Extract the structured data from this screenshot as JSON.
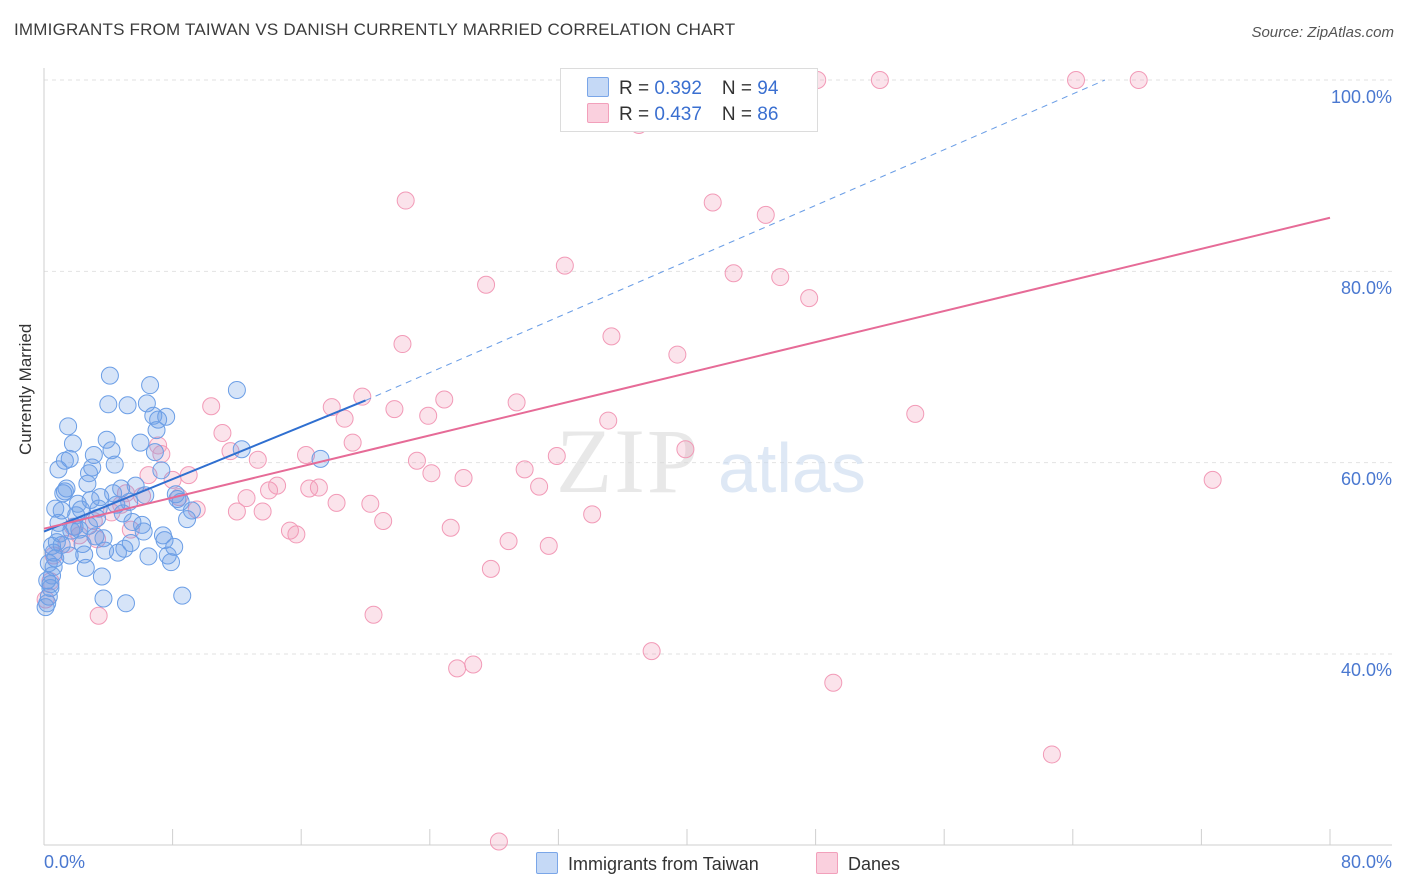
{
  "title": "IMMIGRANTS FROM TAIWAN VS DANISH CURRENTLY MARRIED CORRELATION CHART",
  "source": "Source: ZipAtlas.com",
  "watermark": {
    "zip": "ZIP",
    "atlas": "atlas"
  },
  "legend": {
    "series": [
      {
        "label_r": "R = ",
        "r": "0.392",
        "label_n": "N = ",
        "n": "94",
        "color": "#7aa6e8"
      },
      {
        "label_r": "R = ",
        "r": "0.437",
        "label_n": "N = ",
        "n": "86",
        "color": "#f2a0bb"
      }
    ]
  },
  "bottom_legend": {
    "taiwan": "Immigrants from Taiwan",
    "danes": "Danes"
  },
  "chart_data": {
    "type": "scatter",
    "title": "IMMIGRANTS FROM TAIWAN VS DANISH CURRENTLY MARRIED CORRELATION CHART",
    "xlabel": "",
    "ylabel": "Currently Married",
    "xlim": [
      0,
      80
    ],
    "ylim": [
      20,
      102
    ],
    "x_tick_labels": [
      "0.0%",
      "80.0%"
    ],
    "y_ticks": [
      40,
      60,
      80,
      100
    ],
    "y_tick_labels": [
      "40.0%",
      "60.0%",
      "80.0%",
      "100.0%"
    ],
    "grid": true,
    "series": [
      {
        "name": "Immigrants from Taiwan",
        "color": "#6b9ee6",
        "line_color": "#2f6fd0",
        "trend": {
          "x": [
            0,
            20
          ],
          "y": [
            52.8,
            66.5
          ]
        },
        "trend_ext": {
          "x": [
            20,
            66
          ],
          "y": [
            66.5,
            100.0
          ]
        },
        "points": [
          [
            0.1,
            44.9
          ],
          [
            0.2,
            45.3
          ],
          [
            0.3,
            46.0
          ],
          [
            0.4,
            47.3
          ],
          [
            0.5,
            48.2
          ],
          [
            0.6,
            49.1
          ],
          [
            0.7,
            50.0
          ],
          [
            0.5,
            51.3
          ],
          [
            0.8,
            51.7
          ],
          [
            1.0,
            52.6
          ],
          [
            0.9,
            53.7
          ],
          [
            1.1,
            55.0
          ],
          [
            1.2,
            56.8
          ],
          [
            1.4,
            57.3
          ],
          [
            1.3,
            60.2
          ],
          [
            1.6,
            60.4
          ],
          [
            1.8,
            62.0
          ],
          [
            1.5,
            63.8
          ],
          [
            2.0,
            54.5
          ],
          [
            2.2,
            53.0
          ],
          [
            2.4,
            51.5
          ],
          [
            2.5,
            50.4
          ],
          [
            2.6,
            49.0
          ],
          [
            2.7,
            57.8
          ],
          [
            2.8,
            58.9
          ],
          [
            3.0,
            59.5
          ],
          [
            3.1,
            60.8
          ],
          [
            3.2,
            52.3
          ],
          [
            3.3,
            54.2
          ],
          [
            3.5,
            56.4
          ],
          [
            3.6,
            48.1
          ],
          [
            3.7,
            45.8
          ],
          [
            3.8,
            50.8
          ],
          [
            3.9,
            62.4
          ],
          [
            4.0,
            66.1
          ],
          [
            4.1,
            69.1
          ],
          [
            4.2,
            61.3
          ],
          [
            4.4,
            59.8
          ],
          [
            4.5,
            55.6
          ],
          [
            4.6,
            50.6
          ],
          [
            4.8,
            57.3
          ],
          [
            5.0,
            51.0
          ],
          [
            5.1,
            45.3
          ],
          [
            5.3,
            55.9
          ],
          [
            5.5,
            53.8
          ],
          [
            5.7,
            57.6
          ],
          [
            6.0,
            62.1
          ],
          [
            5.2,
            66.0
          ],
          [
            6.2,
            52.8
          ],
          [
            6.5,
            50.2
          ],
          [
            6.3,
            56.6
          ],
          [
            6.8,
            64.9
          ],
          [
            7.0,
            63.4
          ],
          [
            7.3,
            59.2
          ],
          [
            7.5,
            51.9
          ],
          [
            7.7,
            50.3
          ],
          [
            7.9,
            49.6
          ],
          [
            8.1,
            51.2
          ],
          [
            8.3,
            56.2
          ],
          [
            8.5,
            55.9
          ],
          [
            8.6,
            46.1
          ],
          [
            8.9,
            54.1
          ],
          [
            9.2,
            55.0
          ],
          [
            6.6,
            68.1
          ],
          [
            6.4,
            66.2
          ],
          [
            7.6,
            64.8
          ],
          [
            7.1,
            64.5
          ],
          [
            12.0,
            67.6
          ],
          [
            12.3,
            61.4
          ],
          [
            17.2,
            60.4
          ],
          [
            0.3,
            49.5
          ],
          [
            0.6,
            50.6
          ],
          [
            1.1,
            51.4
          ],
          [
            1.9,
            53.3
          ],
          [
            2.3,
            55.1
          ],
          [
            2.9,
            56.1
          ],
          [
            3.4,
            55.2
          ],
          [
            4.3,
            56.8
          ],
          [
            0.2,
            47.7
          ],
          [
            0.4,
            46.9
          ],
          [
            1.7,
            52.9
          ],
          [
            2.1,
            55.7
          ],
          [
            0.9,
            59.3
          ],
          [
            1.3,
            57.0
          ],
          [
            0.7,
            55.2
          ],
          [
            1.6,
            50.3
          ],
          [
            2.8,
            53.4
          ],
          [
            3.7,
            52.1
          ],
          [
            4.9,
            54.7
          ],
          [
            5.4,
            51.6
          ],
          [
            6.9,
            61.1
          ],
          [
            8.2,
            56.7
          ],
          [
            7.4,
            52.4
          ],
          [
            6.1,
            53.5
          ]
        ]
      },
      {
        "name": "Danes",
        "color": "#f29ab7",
        "line_color": "#e66b97",
        "trend": {
          "x": [
            0,
            80
          ],
          "y": [
            53.1,
            85.6
          ]
        },
        "points": [
          [
            0.1,
            45.7
          ],
          [
            0.4,
            47.6
          ],
          [
            0.6,
            50.3
          ],
          [
            1.4,
            51.5
          ],
          [
            1.8,
            53.3
          ],
          [
            2.2,
            52.4
          ],
          [
            3.1,
            53.9
          ],
          [
            3.3,
            52.0
          ],
          [
            4.2,
            54.8
          ],
          [
            4.8,
            55.6
          ],
          [
            5.1,
            56.8
          ],
          [
            5.4,
            53.0
          ],
          [
            6.1,
            56.5
          ],
          [
            6.5,
            58.7
          ],
          [
            7.1,
            61.8
          ],
          [
            7.3,
            60.9
          ],
          [
            8.0,
            58.2
          ],
          [
            8.4,
            56.4
          ],
          [
            9.0,
            58.7
          ],
          [
            9.5,
            55.1
          ],
          [
            10.4,
            65.9
          ],
          [
            11.1,
            63.1
          ],
          [
            11.6,
            61.2
          ],
          [
            12.0,
            54.9
          ],
          [
            12.6,
            56.3
          ],
          [
            13.3,
            60.3
          ],
          [
            13.6,
            54.9
          ],
          [
            14.0,
            57.1
          ],
          [
            14.5,
            57.6
          ],
          [
            15.3,
            52.9
          ],
          [
            15.7,
            52.5
          ],
          [
            16.3,
            60.8
          ],
          [
            16.5,
            57.3
          ],
          [
            17.1,
            57.4
          ],
          [
            17.9,
            65.8
          ],
          [
            18.2,
            55.8
          ],
          [
            18.7,
            64.6
          ],
          [
            19.2,
            62.1
          ],
          [
            19.8,
            66.9
          ],
          [
            20.3,
            55.7
          ],
          [
            21.1,
            53.9
          ],
          [
            21.8,
            65.6
          ],
          [
            22.3,
            72.4
          ],
          [
            22.5,
            87.4
          ],
          [
            23.2,
            60.2
          ],
          [
            23.9,
            64.9
          ],
          [
            24.1,
            58.9
          ],
          [
            24.9,
            66.6
          ],
          [
            25.3,
            53.2
          ],
          [
            25.7,
            38.5
          ],
          [
            26.1,
            58.4
          ],
          [
            26.7,
            38.9
          ],
          [
            27.5,
            78.6
          ],
          [
            27.8,
            48.9
          ],
          [
            28.3,
            20.4
          ],
          [
            28.9,
            51.8
          ],
          [
            29.4,
            66.3
          ],
          [
            29.9,
            59.3
          ],
          [
            30.8,
            57.5
          ],
          [
            31.4,
            51.3
          ],
          [
            31.9,
            60.7
          ],
          [
            32.4,
            80.6
          ],
          [
            34.1,
            54.6
          ],
          [
            35.3,
            73.2
          ],
          [
            35.1,
            64.4
          ],
          [
            37.0,
            95.3
          ],
          [
            37.8,
            40.3
          ],
          [
            38.7,
            100.0
          ],
          [
            39.4,
            71.3
          ],
          [
            39.9,
            61.4
          ],
          [
            41.6,
            87.2
          ],
          [
            42.9,
            79.8
          ],
          [
            44.9,
            85.9
          ],
          [
            45.8,
            79.4
          ],
          [
            47.6,
            77.2
          ],
          [
            48.1,
            100.0
          ],
          [
            49.1,
            37.0
          ],
          [
            52.0,
            100.0
          ],
          [
            54.2,
            65.1
          ],
          [
            62.7,
            29.5
          ],
          [
            64.2,
            100.0
          ],
          [
            68.1,
            100.0
          ],
          [
            72.7,
            58.2
          ],
          [
            20.5,
            44.1
          ],
          [
            44.6,
            100.0
          ],
          [
            3.4,
            44.0
          ]
        ]
      }
    ]
  }
}
